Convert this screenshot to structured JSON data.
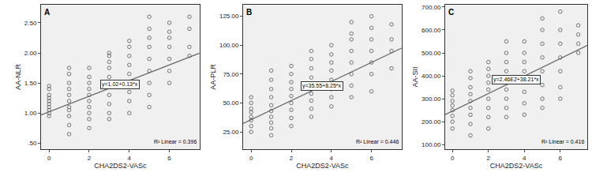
{
  "chart_data": [
    {
      "type": "scatter",
      "title": "A",
      "x_label": "CHA2DS2-VASc",
      "y_label": "AA-NLR",
      "xlim": [
        -0.4,
        7.5
      ],
      "xticks": [
        0,
        2,
        4,
        6
      ],
      "ylim": [
        0.4,
        2.8
      ],
      "yticks": [
        {
          "value": 0.5,
          "label": ".50"
        },
        {
          "value": 1.0,
          "label": "1.00"
        },
        {
          "value": 1.5,
          "label": "1.50"
        },
        {
          "value": 2.0,
          "label": "2.00"
        },
        {
          "value": 2.5,
          "label": "2.50"
        }
      ],
      "grid": false,
      "annotations": [
        "y=1.02+0.13*x",
        "R² Linear = 0.396"
      ],
      "series": [
        {
          "type": "scatter",
          "marker": "circle-open",
          "color": "#555555",
          "x": [
            0,
            0,
            0,
            0,
            0,
            0,
            0,
            0,
            0,
            0,
            1,
            1,
            1,
            1,
            1,
            1,
            1,
            1,
            1,
            1,
            1,
            2,
            2,
            2,
            2,
            2,
            2,
            2,
            2,
            2,
            2,
            3,
            3,
            3,
            3,
            3,
            3,
            3,
            3,
            3,
            3,
            4,
            4,
            4,
            4,
            4,
            4,
            4,
            4,
            4,
            5,
            5,
            5,
            5,
            5,
            5,
            5,
            5,
            5,
            6,
            6,
            6,
            6,
            6,
            6,
            6,
            7,
            7,
            7,
            7
          ],
          "values": [
            0.95,
            1.0,
            1.05,
            1.1,
            1.15,
            1.2,
            1.25,
            1.3,
            1.4,
            1.45,
            0.65,
            0.8,
            0.95,
            1.05,
            1.1,
            1.2,
            1.3,
            1.4,
            1.5,
            1.65,
            1.75,
            0.75,
            0.9,
            1.0,
            1.1,
            1.2,
            1.3,
            1.4,
            1.5,
            1.6,
            1.75,
            0.9,
            1.0,
            1.15,
            1.3,
            1.45,
            1.6,
            1.75,
            1.85,
            1.95,
            2.0,
            1.0,
            1.2,
            1.35,
            1.5,
            1.65,
            1.8,
            1.95,
            2.1,
            2.2,
            1.1,
            1.3,
            1.5,
            1.7,
            1.9,
            2.1,
            2.25,
            2.4,
            2.6,
            1.5,
            1.7,
            1.9,
            2.1,
            2.25,
            2.35,
            2.5,
            1.95,
            2.1,
            2.4,
            2.6
          ]
        },
        {
          "type": "line",
          "line_style": "solid",
          "color": "#666666",
          "x": [
            -0.4,
            7.5
          ],
          "values": [
            0.968,
            1.995
          ]
        }
      ]
    },
    {
      "type": "scatter",
      "title": "B",
      "x_label": "CHA2DS2-VASc",
      "y_label": "AA-PLR",
      "xlim": [
        -0.4,
        7.5
      ],
      "xticks": [
        0,
        2,
        4,
        6
      ],
      "ylim": [
        10,
        135
      ],
      "yticks": [
        {
          "value": 25,
          "label": "25.00"
        },
        {
          "value": 50,
          "label": "50.00"
        },
        {
          "value": 75,
          "label": "75.00"
        },
        {
          "value": 100,
          "label": "100.00"
        },
        {
          "value": 125,
          "label": "125.00"
        }
      ],
      "grid": false,
      "annotations": [
        "y=35.55+8.25*x",
        "R² Linear = 0.446"
      ],
      "series": [
        {
          "type": "scatter",
          "marker": "circle-open",
          "color": "#555555",
          "x": [
            0,
            0,
            0,
            0,
            0,
            0,
            0,
            0,
            1,
            1,
            1,
            1,
            1,
            1,
            1,
            1,
            1,
            1,
            2,
            2,
            2,
            2,
            2,
            2,
            2,
            2,
            2,
            3,
            3,
            3,
            3,
            3,
            3,
            3,
            3,
            3,
            4,
            4,
            4,
            4,
            4,
            4,
            4,
            4,
            5,
            5,
            5,
            5,
            5,
            5,
            5,
            5,
            6,
            6,
            6,
            6,
            6,
            6,
            6,
            7,
            7,
            7,
            7
          ],
          "values": [
            25,
            30,
            35,
            38,
            42,
            45,
            50,
            55,
            22,
            28,
            33,
            38,
            43,
            48,
            55,
            62,
            70,
            78,
            30,
            37,
            44,
            50,
            56,
            62,
            68,
            75,
            82,
            38,
            45,
            52,
            58,
            65,
            72,
            80,
            88,
            95,
            47,
            55,
            62,
            70,
            78,
            85,
            92,
            100,
            55,
            65,
            75,
            85,
            95,
            105,
            110,
            120,
            60,
            75,
            85,
            95,
            105,
            115,
            125,
            80,
            95,
            105,
            118
          ]
        },
        {
          "type": "line",
          "line_style": "solid",
          "color": "#666666",
          "x": [
            -0.4,
            7.5
          ],
          "values": [
            32.25,
            97.43
          ]
        }
      ]
    },
    {
      "type": "scatter",
      "title": "C",
      "x_label": "CHA2DS2-VASc",
      "y_label": "AA-SII",
      "xlim": [
        -0.4,
        7.5
      ],
      "xticks": [
        0,
        2,
        4,
        6
      ],
      "ylim": [
        80,
        710
      ],
      "yticks": [
        {
          "value": 100,
          "label": "100.00"
        },
        {
          "value": 200,
          "label": "200.00"
        },
        {
          "value": 300,
          "label": "300.00"
        },
        {
          "value": 400,
          "label": "400.00"
        },
        {
          "value": 500,
          "label": "500.00"
        },
        {
          "value": 600,
          "label": "600.00"
        },
        {
          "value": 700,
          "label": "700.00"
        }
      ],
      "grid": false,
      "annotations": [
        "y=2.46E2+38.21*x",
        "R² Linear = 0.416"
      ],
      "series": [
        {
          "type": "scatter",
          "marker": "circle-open",
          "color": "#555555",
          "x": [
            0,
            0,
            0,
            0,
            0,
            0,
            0,
            0,
            1,
            1,
            1,
            1,
            1,
            1,
            1,
            1,
            1,
            2,
            2,
            2,
            2,
            2,
            2,
            2,
            2,
            2,
            3,
            3,
            3,
            3,
            3,
            3,
            3,
            3,
            3,
            4,
            4,
            4,
            4,
            4,
            4,
            4,
            4,
            5,
            5,
            5,
            5,
            5,
            5,
            5,
            5,
            6,
            6,
            6,
            6,
            6,
            6,
            6,
            7,
            7,
            7,
            7
          ],
          "values": [
            170,
            200,
            225,
            250,
            270,
            290,
            315,
            335,
            140,
            190,
            230,
            260,
            290,
            320,
            350,
            390,
            420,
            170,
            220,
            260,
            300,
            340,
            370,
            400,
            430,
            460,
            220,
            260,
            300,
            340,
            380,
            420,
            460,
            500,
            550,
            230,
            280,
            330,
            380,
            420,
            460,
            500,
            550,
            260,
            300,
            360,
            420,
            480,
            540,
            600,
            650,
            300,
            350,
            420,
            480,
            540,
            600,
            680,
            500,
            540,
            580,
            620
          ]
        },
        {
          "type": "line",
          "line_style": "solid",
          "color": "#666666",
          "x": [
            -0.4,
            7.5
          ],
          "values": [
            230.9,
            532.8
          ]
        }
      ]
    }
  ]
}
